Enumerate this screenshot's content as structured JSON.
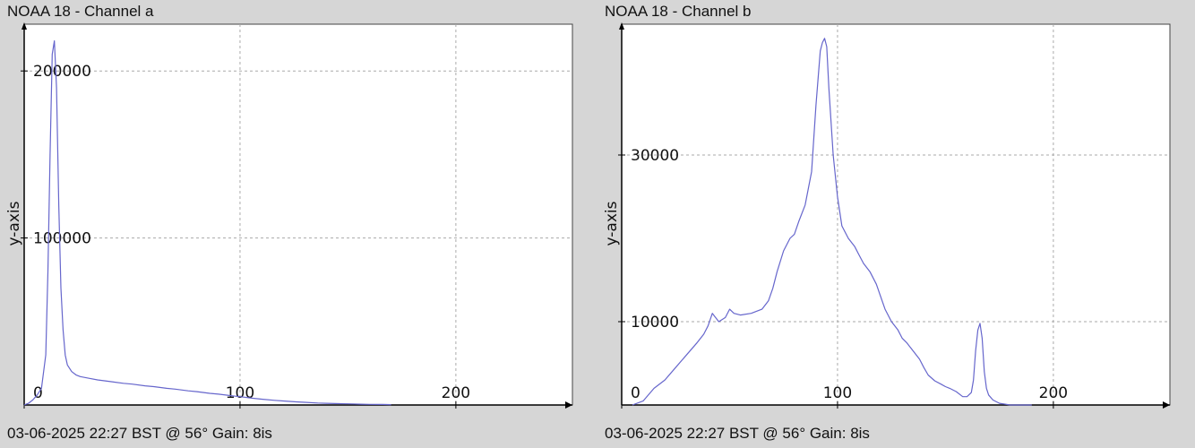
{
  "colors": {
    "line": "#6666cc",
    "grid": "#aaaaaa",
    "plot_bg": "#ffffff",
    "page_bg": "#d6d6d6"
  },
  "chart_data": [
    {
      "type": "line",
      "title": "NOAA 18 - Channel a",
      "footer": "03-06-2025 22:27 BST @ 56° Gain: 8is",
      "ylabel": "y-axis",
      "xlabel": "",
      "xlim": [
        0,
        254
      ],
      "ylim": [
        0,
        228000
      ],
      "xticks": [
        0,
        100,
        200
      ],
      "yticks": [
        100000,
        200000
      ],
      "grid": true,
      "series": [
        {
          "x": [
            0,
            2,
            4,
            6,
            8,
            10,
            11,
            12,
            13,
            14,
            15,
            16,
            17,
            18,
            19,
            20,
            22,
            24,
            26,
            30,
            34,
            40,
            46,
            50,
            56,
            60,
            66,
            70,
            76,
            80,
            86,
            90,
            96,
            100,
            106,
            110,
            116,
            120,
            126,
            130,
            136,
            140,
            146,
            150,
            156,
            160,
            166,
            170
          ],
          "y": [
            0,
            1000,
            3000,
            6000,
            10000,
            30000,
            80000,
            150000,
            210000,
            218000,
            190000,
            120000,
            70000,
            45000,
            30000,
            24000,
            20000,
            18000,
            17000,
            16000,
            15000,
            14000,
            13000,
            12500,
            11500,
            11000,
            10000,
            9500,
            8500,
            8000,
            7000,
            6500,
            5500,
            5000,
            4000,
            3500,
            2800,
            2400,
            1900,
            1600,
            1200,
            1000,
            800,
            700,
            500,
            400,
            300,
            200
          ]
        }
      ]
    },
    {
      "type": "line",
      "title": "NOAA 18 - Channel b",
      "footer": "03-06-2025 22:27 BST @ 56° Gain: 8is",
      "ylabel": "y-axis",
      "xlabel": "",
      "xlim": [
        0,
        254
      ],
      "ylim": [
        0,
        45700
      ],
      "xticks": [
        0,
        100,
        200
      ],
      "yticks": [
        10000,
        30000
      ],
      "grid": true,
      "series": [
        {
          "x": [
            5,
            10,
            15,
            20,
            25,
            30,
            35,
            38,
            40,
            42,
            45,
            48,
            50,
            52,
            55,
            60,
            65,
            68,
            70,
            72,
            75,
            78,
            80,
            82,
            85,
            88,
            90,
            92,
            93,
            94,
            95,
            96,
            98,
            100,
            102,
            105,
            108,
            110,
            112,
            115,
            118,
            120,
            122,
            125,
            128,
            130,
            132,
            135,
            138,
            140,
            142,
            145,
            148,
            150,
            152,
            155,
            158,
            160,
            162,
            163,
            164,
            165,
            166,
            167,
            168,
            169,
            170,
            172,
            175,
            180,
            185,
            190
          ],
          "y": [
            0,
            500,
            2000,
            3000,
            4500,
            6000,
            7500,
            8500,
            9500,
            11000,
            10000,
            10500,
            11500,
            11000,
            10800,
            11000,
            11500,
            12500,
            14000,
            16000,
            18500,
            20000,
            20500,
            22000,
            24000,
            28000,
            36000,
            42500,
            43500,
            44000,
            43000,
            38000,
            30000,
            25000,
            21500,
            20000,
            19000,
            18000,
            17000,
            16000,
            14500,
            13000,
            11500,
            10000,
            9000,
            8000,
            7500,
            6500,
            5500,
            4500,
            3600,
            2900,
            2500,
            2200,
            2000,
            1600,
            1000,
            1000,
            1500,
            3000,
            6500,
            9000,
            9800,
            8000,
            4000,
            2000,
            1200,
            600,
            200,
            0,
            0,
            0
          ]
        }
      ]
    }
  ]
}
